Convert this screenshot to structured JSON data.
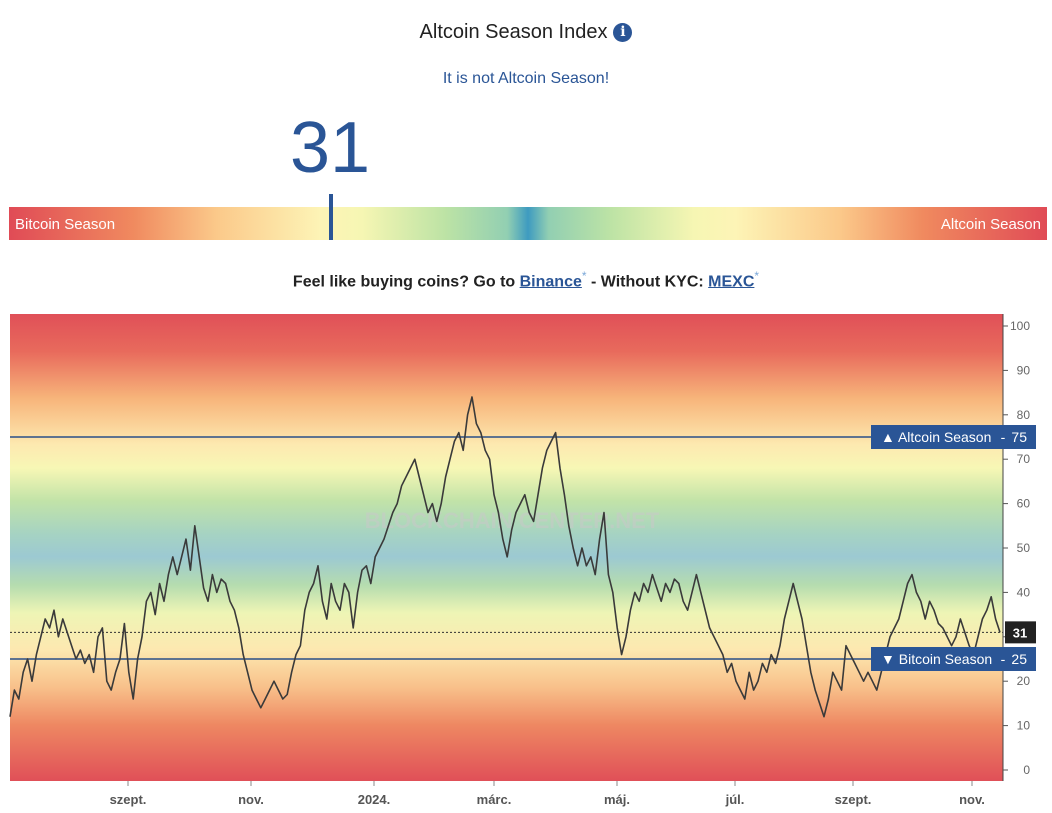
{
  "header": {
    "title": "Altcoin Season Index",
    "info_icon": "info-icon",
    "status_text": "It is not Altcoin Season!",
    "current_value": "31"
  },
  "gauge": {
    "left_label": "Bitcoin Season",
    "right_label": "Altcoin Season",
    "value": 31,
    "range": [
      0,
      100
    ]
  },
  "promo": {
    "prefix": "Feel like buying coins? Go to",
    "binance_label": "Binance",
    "middle": "- Without KYC:",
    "mexc_label": "MEXC",
    "asterisk": "*"
  },
  "chart_data": {
    "type": "line",
    "ylim": [
      0,
      100
    ],
    "y_ticks": [
      "0",
      "10",
      "20",
      "30",
      "40",
      "50",
      "60",
      "70",
      "80",
      "90",
      "100"
    ],
    "x_ticks": [
      "szept.",
      "nov.",
      "2024.",
      "márc.",
      "máj.",
      "júl.",
      "szept.",
      "nov."
    ],
    "watermark": "BLOCKCHAIN CENTER.NET",
    "current_value": 31,
    "current_label": "31",
    "reference_lines": [
      {
        "name": "Altcoin Season",
        "value": 75,
        "label": "▲ Altcoin Season",
        "value_label": "75"
      },
      {
        "name": "Bitcoin Season",
        "value": 25,
        "label": "▼ Bitcoin Season",
        "value_label": "25"
      }
    ],
    "grid": false,
    "series": [
      {
        "values": [
          12,
          18,
          16,
          22,
          25,
          20,
          26,
          30,
          34,
          32,
          36,
          30,
          34,
          31,
          28,
          25,
          27,
          24,
          26,
          22,
          30,
          32,
          20,
          18,
          22,
          25,
          33,
          22,
          16,
          25,
          30,
          38,
          40,
          35,
          42,
          38,
          44,
          48,
          44,
          48,
          52,
          45,
          55,
          48,
          41,
          38,
          44,
          40,
          43,
          42,
          38,
          36,
          32,
          26,
          22,
          18,
          16,
          14,
          16,
          18,
          20,
          18,
          16,
          17,
          22,
          26,
          28,
          36,
          40,
          42,
          46,
          38,
          34,
          42,
          38,
          36,
          42,
          40,
          32,
          40,
          45,
          46,
          42,
          48,
          50,
          52,
          55,
          58,
          60,
          64,
          66,
          68,
          70,
          66,
          62,
          58,
          60,
          56,
          60,
          66,
          70,
          74,
          76,
          72,
          80,
          84,
          78,
          76,
          72,
          70,
          62,
          58,
          52,
          48,
          54,
          58,
          60,
          62,
          58,
          56,
          62,
          68,
          72,
          74,
          76,
          68,
          62,
          55,
          50,
          46,
          50,
          46,
          48,
          44,
          52,
          58,
          44,
          40,
          32,
          26,
          30,
          36,
          40,
          38,
          42,
          40,
          44,
          41,
          38,
          42,
          40,
          43,
          42,
          38,
          36,
          40,
          44,
          40,
          36,
          32,
          30,
          28,
          26,
          22,
          24,
          20,
          18,
          16,
          22,
          18,
          20,
          24,
          22,
          26,
          24,
          28,
          34,
          38,
          42,
          38,
          34,
          28,
          22,
          18,
          15,
          12,
          16,
          22,
          20,
          18,
          28,
          26,
          24,
          22,
          20,
          22,
          20,
          18,
          22,
          26,
          30,
          32,
          34,
          38,
          42,
          44,
          40,
          38,
          34,
          38,
          36,
          33,
          32,
          30,
          28,
          30,
          34,
          31,
          28,
          26,
          30,
          34,
          36,
          39,
          34,
          31
        ]
      }
    ]
  }
}
